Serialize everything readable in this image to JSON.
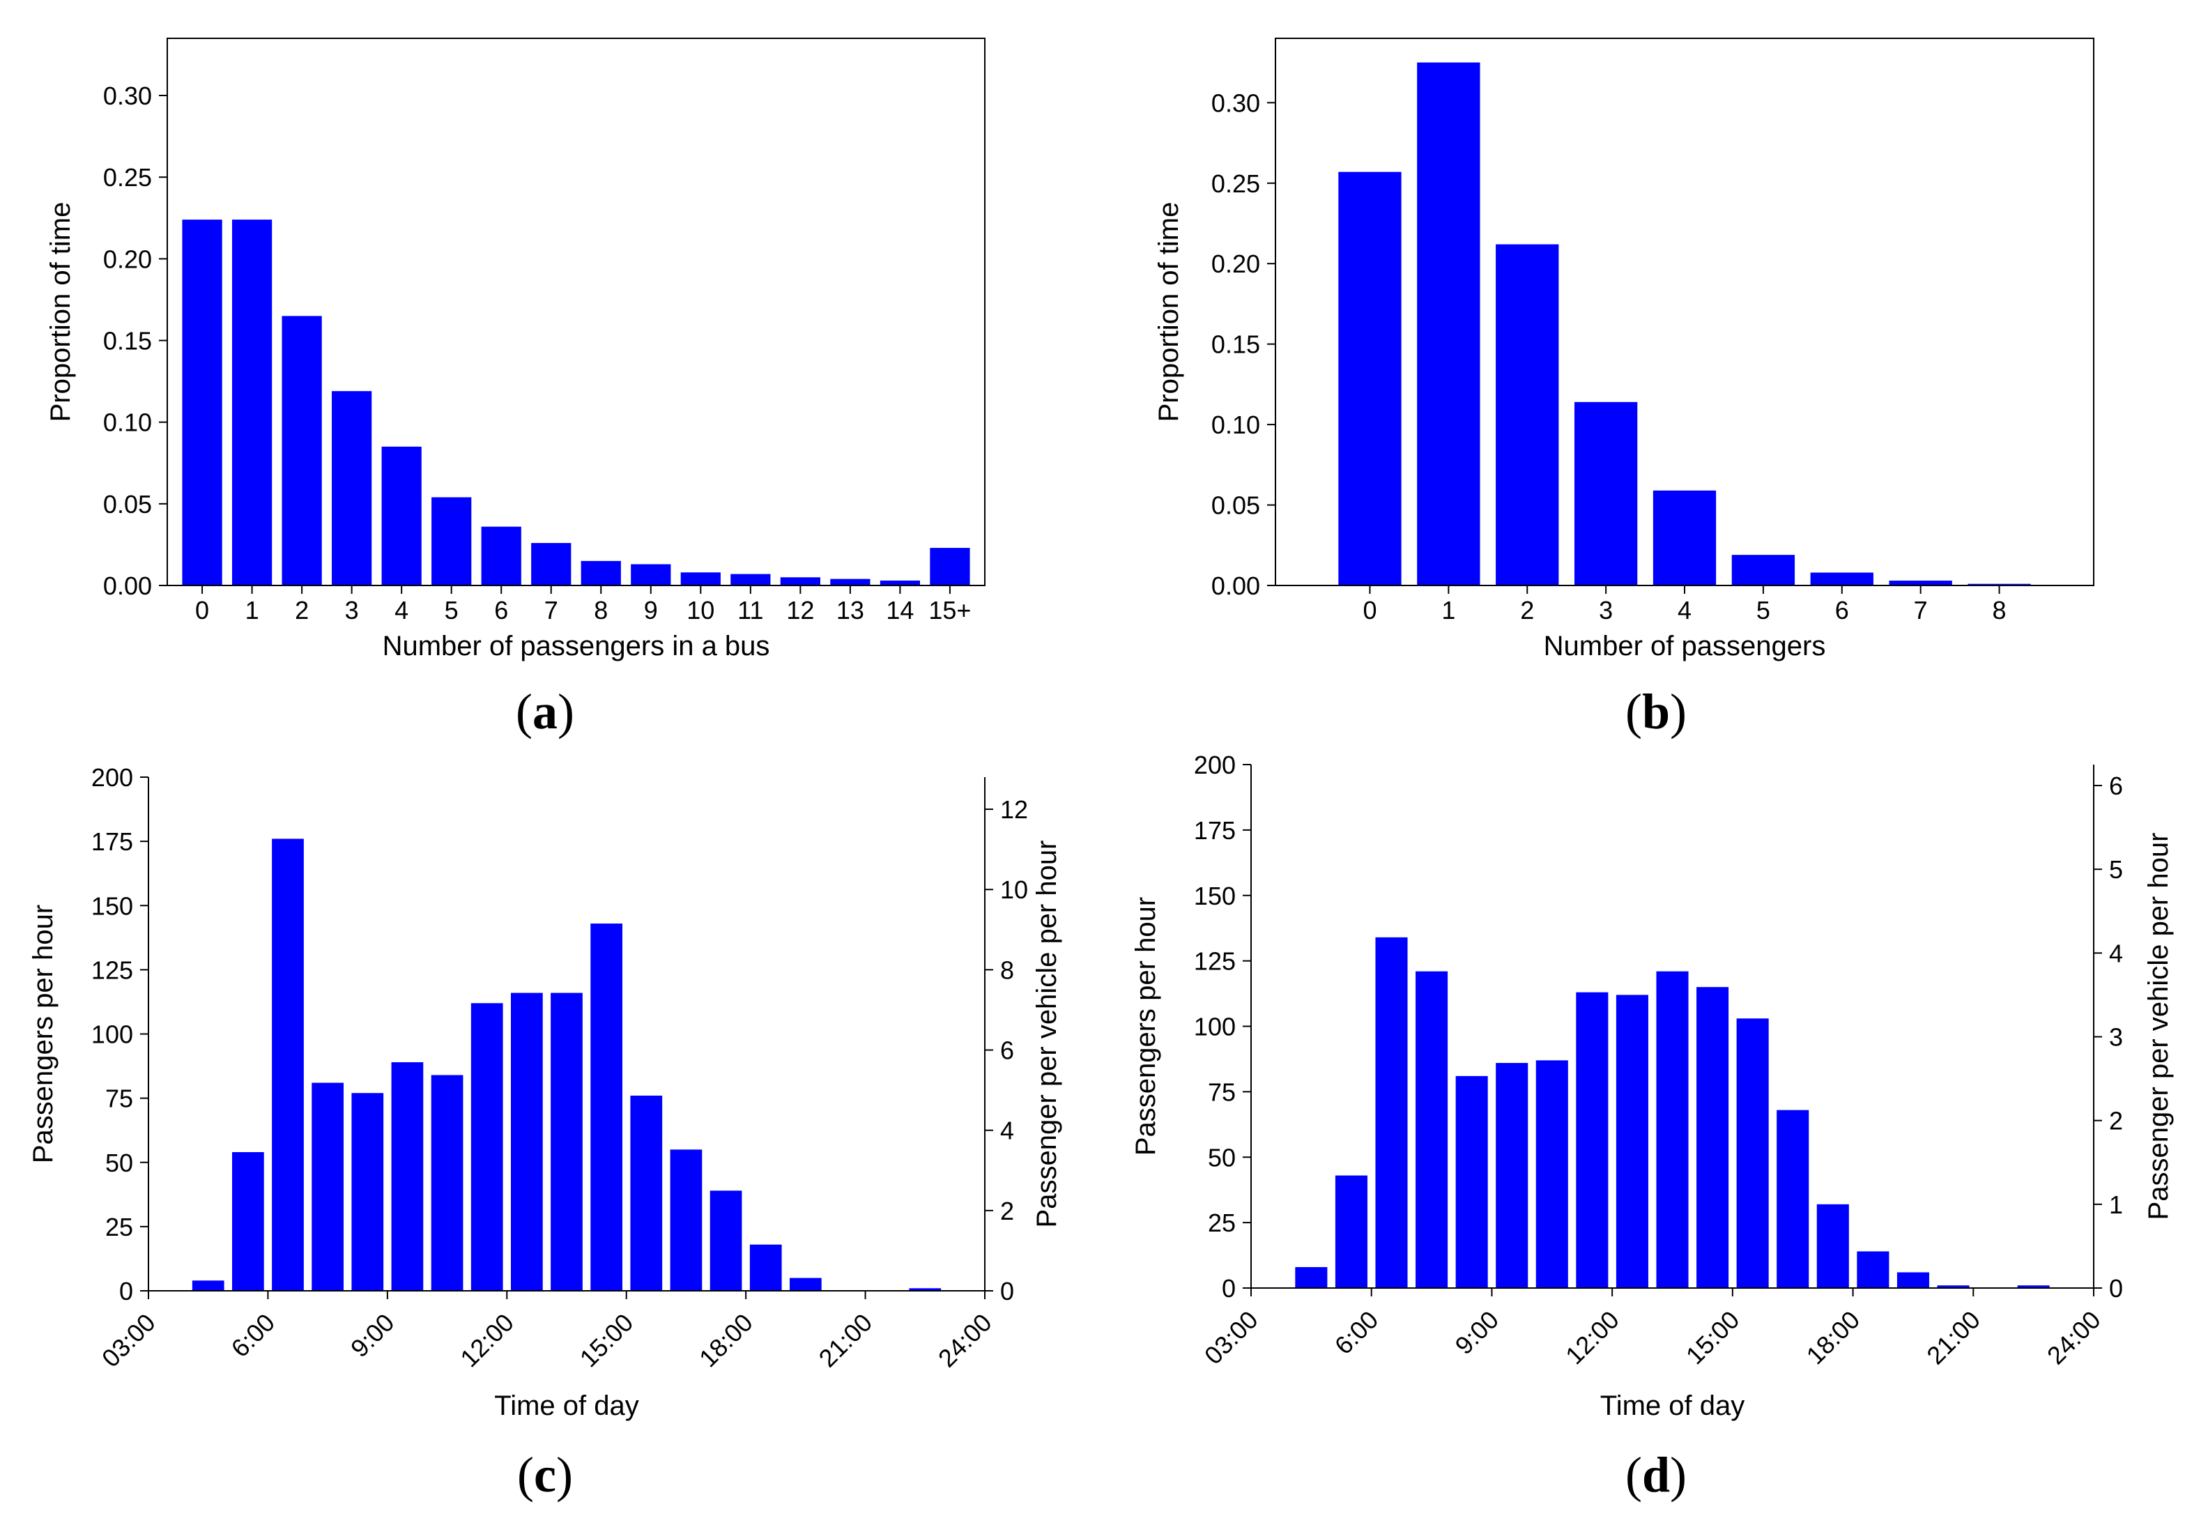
{
  "chart_data": [
    {
      "id": "a",
      "type": "bar",
      "caption": "a",
      "xlabel": "Number of passengers in a bus",
      "ylabel": "Proportion of time",
      "categories": [
        "0",
        "1",
        "2",
        "3",
        "4",
        "5",
        "6",
        "7",
        "8",
        "9",
        "10",
        "11",
        "12",
        "13",
        "14",
        "15+"
      ],
      "values": [
        0.224,
        0.224,
        0.165,
        0.119,
        0.085,
        0.054,
        0.036,
        0.026,
        0.015,
        0.013,
        0.008,
        0.007,
        0.005,
        0.004,
        0.003,
        0.023
      ],
      "ylim": [
        0,
        0.335
      ],
      "yticks": [
        "0.00",
        "0.05",
        "0.10",
        "0.15",
        "0.20",
        "0.25",
        "0.30"
      ],
      "color": "#0000ff"
    },
    {
      "id": "b",
      "type": "bar",
      "caption": "b",
      "xlabel": "Number of passengers",
      "ylabel": "Proportion of time",
      "categories": [
        "0",
        "1",
        "2",
        "3",
        "4",
        "5",
        "6",
        "7",
        "8"
      ],
      "values": [
        0.257,
        0.325,
        0.212,
        0.114,
        0.059,
        0.019,
        0.008,
        0.003,
        0.001
      ],
      "ylim": [
        0,
        0.34
      ],
      "yticks": [
        "0.00",
        "0.05",
        "0.10",
        "0.15",
        "0.20",
        "0.25",
        "0.30"
      ],
      "color": "#0000ff"
    },
    {
      "id": "c",
      "type": "bar",
      "caption": "c",
      "xlabel": "Time of day",
      "ylabel": "Passengers per hour",
      "ylabel_right": "Passenger per vehicle per hour",
      "x_hours": [
        4,
        5,
        6,
        7,
        8,
        9,
        10,
        11,
        12,
        13,
        14,
        15,
        16,
        17,
        18,
        19,
        20,
        21,
        22
      ],
      "values": [
        4,
        54,
        176,
        81,
        77,
        89,
        84,
        112,
        116,
        116,
        143,
        76,
        55,
        39,
        18,
        5,
        0,
        0,
        1
      ],
      "xlim": [
        3,
        24
      ],
      "xticks": [
        "03:00",
        "6:00",
        "9:00",
        "12:00",
        "15:00",
        "18:00",
        "21:00",
        "24:00"
      ],
      "ylim": [
        0,
        200
      ],
      "yticks": [
        "0",
        "25",
        "50",
        "75",
        "100",
        "125",
        "150",
        "175",
        "200"
      ],
      "ylim_right": [
        0,
        12.8
      ],
      "yticks_right": [
        "0",
        "2",
        "4",
        "6",
        "8",
        "10",
        "12"
      ],
      "color": "#0000ff"
    },
    {
      "id": "d",
      "type": "bar",
      "caption": "d",
      "xlabel": "Time of day",
      "ylabel": "Passengers per hour",
      "ylabel_right": "Passenger per vehicle per hour",
      "x_hours": [
        4,
        5,
        6,
        7,
        8,
        9,
        10,
        11,
        12,
        13,
        14,
        15,
        16,
        17,
        18,
        19,
        20,
        21,
        22
      ],
      "values": [
        8,
        43,
        134,
        121,
        81,
        86,
        87,
        113,
        112,
        121,
        115,
        103,
        68,
        32,
        14,
        6,
        1,
        0,
        1
      ],
      "xlim": [
        3,
        24
      ],
      "xticks": [
        "03:00",
        "6:00",
        "9:00",
        "12:00",
        "15:00",
        "18:00",
        "21:00",
        "24:00"
      ],
      "ylim": [
        0,
        200
      ],
      "yticks": [
        "0",
        "25",
        "50",
        "75",
        "100",
        "125",
        "150",
        "175",
        "200"
      ],
      "ylim_right": [
        0,
        6.25
      ],
      "yticks_right": [
        "0",
        "1",
        "2",
        "3",
        "4",
        "5",
        "6"
      ],
      "color": "#0000ff"
    }
  ]
}
